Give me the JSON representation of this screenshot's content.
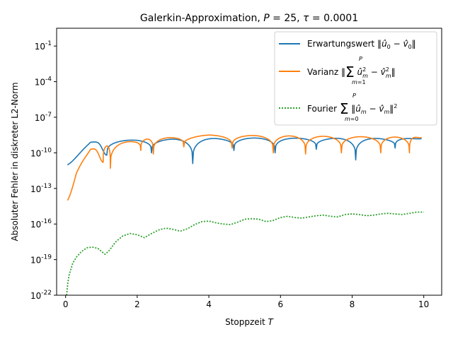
{
  "chart_data": {
    "type": "line",
    "title": "Galerkin-Approximation, P = 25, τ = 0.0001",
    "xlabel": "Stoppzeit T",
    "ylabel": "Absoluter Fehler in diskreter L2-Norm",
    "xlim": [
      -0.25,
      10.5
    ],
    "ylim_log10": [
      -22,
      0.5
    ],
    "yscale": "log",
    "xticks": [
      0,
      2,
      4,
      6,
      8,
      10
    ],
    "xtick_labels": [
      "0",
      "2",
      "4",
      "6",
      "8",
      "10"
    ],
    "yticks_log10": [
      -1,
      -4,
      -7,
      -10,
      -13,
      -16,
      -19,
      -22
    ],
    "ytick_labels": [
      "10^-1",
      "10^-4",
      "10^-7",
      "10^-10",
      "10^-13",
      "10^-16",
      "10^-19",
      "10^-22"
    ],
    "grid": false,
    "legend_position": "top-right",
    "series": [
      {
        "name": "Erwartungswert ‖û0 − v̂0‖",
        "color": "#1f77b4",
        "style": "solid",
        "x_range": [
          0.05,
          9.95
        ],
        "log10_envelope": [
          [
            0.05,
            -11.0
          ],
          [
            0.7,
            -9.1
          ],
          [
            2.0,
            -8.9
          ],
          [
            5.0,
            -8.75
          ],
          [
            10.0,
            -8.8
          ]
        ],
        "dip_x": [
          1.15,
          2.4,
          3.55,
          4.7,
          5.85,
          7.0,
          8.1,
          9.2
        ],
        "dip_log10": [
          -10.2,
          -10.0,
          -10.9,
          -9.8,
          -10.0,
          -9.7,
          -10.6,
          -9.6
        ]
      },
      {
        "name": "Varianz ‖Σ_{m=1}^{P} û_m² − v̂_m²‖",
        "color": "#ff7f0e",
        "style": "solid",
        "x_range": [
          0.05,
          9.95
        ],
        "log10_envelope": [
          [
            0.05,
            -14.0
          ],
          [
            0.3,
            -11.5
          ],
          [
            0.7,
            -9.7
          ],
          [
            2.0,
            -8.9
          ],
          [
            4.0,
            -8.5
          ],
          [
            10.0,
            -8.7
          ]
        ],
        "dip_x": [
          1.05,
          1.25,
          2.1,
          2.45,
          3.3,
          4.65,
          5.8,
          6.7,
          7.7,
          8.8,
          9.6
        ],
        "dip_log10": [
          -10.8,
          -11.3,
          -9.8,
          -10.1,
          -9.5,
          -9.6,
          -10.0,
          -10.1,
          -10.0,
          -10.0,
          -10.0
        ]
      },
      {
        "name": "Fourier Σ_{m=0}^{P} ‖û_m − v̂_m‖²",
        "color": "#2ca02c",
        "style": "dotted",
        "points": [
          [
            0.03,
            -22.0
          ],
          [
            0.06,
            -21.0
          ],
          [
            0.1,
            -20.3
          ],
          [
            0.2,
            -19.3
          ],
          [
            0.3,
            -18.8
          ],
          [
            0.45,
            -18.3
          ],
          [
            0.6,
            -18.0
          ],
          [
            0.75,
            -17.95
          ],
          [
            0.9,
            -18.05
          ],
          [
            1.0,
            -18.3
          ],
          [
            1.1,
            -18.55
          ],
          [
            1.2,
            -18.3
          ],
          [
            1.4,
            -17.5
          ],
          [
            1.6,
            -17.0
          ],
          [
            1.8,
            -16.8
          ],
          [
            2.0,
            -16.9
          ],
          [
            2.2,
            -17.15
          ],
          [
            2.4,
            -16.8
          ],
          [
            2.6,
            -16.5
          ],
          [
            2.8,
            -16.35
          ],
          [
            3.0,
            -16.45
          ],
          [
            3.2,
            -16.6
          ],
          [
            3.4,
            -16.4
          ],
          [
            3.6,
            -16.05
          ],
          [
            3.8,
            -15.8
          ],
          [
            4.0,
            -15.75
          ],
          [
            4.2,
            -15.9
          ],
          [
            4.4,
            -16.0
          ],
          [
            4.6,
            -16.05
          ],
          [
            4.8,
            -15.85
          ],
          [
            5.0,
            -15.6
          ],
          [
            5.2,
            -15.55
          ],
          [
            5.4,
            -15.6
          ],
          [
            5.6,
            -15.8
          ],
          [
            5.8,
            -15.7
          ],
          [
            6.0,
            -15.45
          ],
          [
            6.2,
            -15.35
          ],
          [
            6.4,
            -15.45
          ],
          [
            6.6,
            -15.5
          ],
          [
            6.8,
            -15.4
          ],
          [
            7.0,
            -15.3
          ],
          [
            7.2,
            -15.25
          ],
          [
            7.4,
            -15.35
          ],
          [
            7.6,
            -15.4
          ],
          [
            7.8,
            -15.2
          ],
          [
            8.0,
            -15.15
          ],
          [
            8.2,
            -15.2
          ],
          [
            8.4,
            -15.3
          ],
          [
            8.6,
            -15.25
          ],
          [
            8.8,
            -15.15
          ],
          [
            9.0,
            -15.1
          ],
          [
            9.2,
            -15.15
          ],
          [
            9.4,
            -15.2
          ],
          [
            9.6,
            -15.1
          ],
          [
            9.8,
            -15.0
          ],
          [
            10.0,
            -15.0
          ]
        ]
      }
    ]
  }
}
